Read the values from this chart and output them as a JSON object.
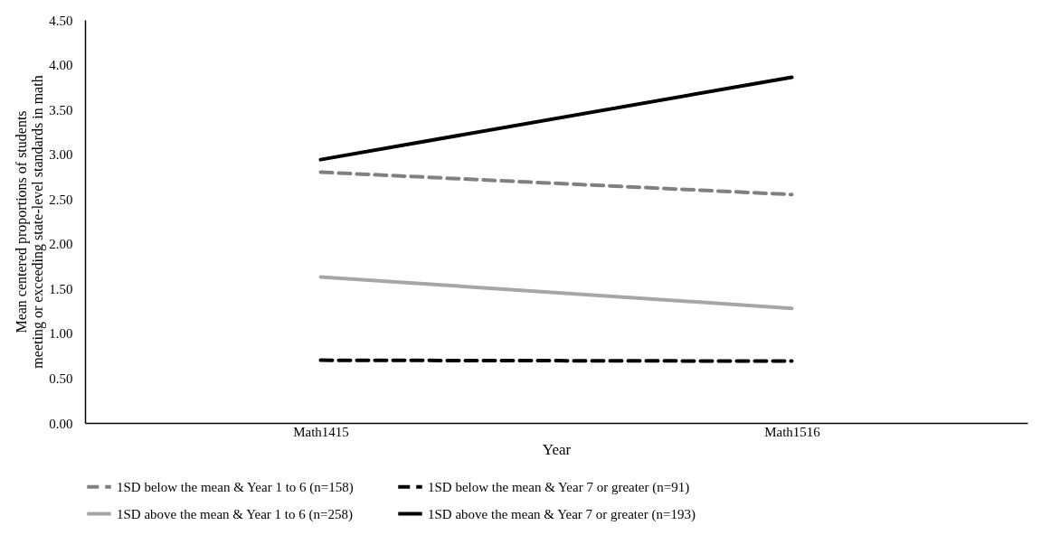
{
  "chart_data": {
    "type": "line",
    "xlabel": "Year",
    "ylabel": "Mean centered proportions of students\nmeeting or exceeding state-level standards in math",
    "categories": [
      "Math1415",
      "Math1516"
    ],
    "ylim": [
      0,
      4.5
    ],
    "yticks": [
      {
        "value": 0,
        "label": "0.00"
      },
      {
        "value": 0.5,
        "label": "0.50"
      },
      {
        "value": 1,
        "label": "1.00"
      },
      {
        "value": 1.5,
        "label": "1.50"
      },
      {
        "value": 2,
        "label": "2.00"
      },
      {
        "value": 2.5,
        "label": "2.50"
      },
      {
        "value": 3,
        "label": "3.00"
      },
      {
        "value": 3.5,
        "label": "3.50"
      },
      {
        "value": 4,
        "label": "4.00"
      },
      {
        "value": 4.5,
        "label": "4.50"
      }
    ],
    "grid": false,
    "legend": "bottom",
    "marker": "none",
    "series": [
      {
        "name": "1SD below the mean & Year 1 to 6 (n=158)",
        "color": "#808080",
        "line_style": "dashed",
        "values": [
          2.8,
          2.55
        ]
      },
      {
        "name": "1SD below the mean & Year 7 or greater (n=91)",
        "color": "#000000",
        "line_style": "dashed",
        "values": [
          0.7,
          0.69
        ]
      },
      {
        "name": "1SD above the mean & Year 1 to 6 (n=258)",
        "color": "#a6a6a6",
        "line_style": "solid",
        "values": [
          1.63,
          1.28
        ]
      },
      {
        "name": "1SD above the mean & Year 7 or greater (n=193)",
        "color": "#000000",
        "line_style": "solid",
        "values": [
          2.94,
          3.86
        ]
      }
    ]
  }
}
